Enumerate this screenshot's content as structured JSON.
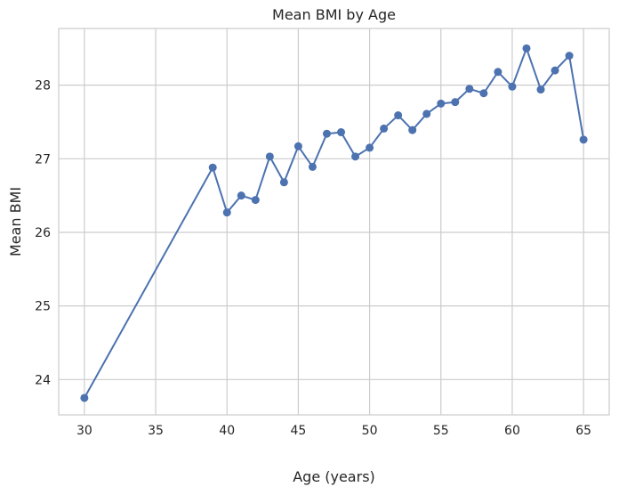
{
  "chart_data": {
    "type": "line",
    "title": "Mean BMI by Age",
    "xlabel": "Age (years)",
    "ylabel": "Mean BMI",
    "xlim": [
      28.2,
      66.8
    ],
    "ylim": [
      23.52,
      28.77
    ],
    "xticks": [
      30,
      35,
      40,
      45,
      50,
      55,
      60,
      65
    ],
    "yticks": [
      24,
      25,
      26,
      27,
      28
    ],
    "grid": true,
    "legend": "none",
    "color": "#4c72b0",
    "series": [
      {
        "marker": "circle",
        "x": [
          30,
          39,
          40,
          41,
          42,
          43,
          44,
          45,
          46,
          47,
          48,
          49,
          50,
          51,
          52,
          53,
          54,
          55,
          56,
          57,
          58,
          59,
          60,
          61,
          62,
          63,
          64,
          65
        ],
        "y": [
          23.75,
          26.88,
          26.27,
          26.5,
          26.44,
          27.03,
          26.68,
          27.17,
          26.89,
          27.34,
          27.36,
          27.03,
          27.15,
          27.41,
          27.59,
          27.39,
          27.61,
          27.75,
          27.77,
          27.95,
          27.89,
          28.18,
          27.98,
          28.5,
          27.94,
          28.2,
          28.4,
          27.26
        ]
      }
    ]
  }
}
